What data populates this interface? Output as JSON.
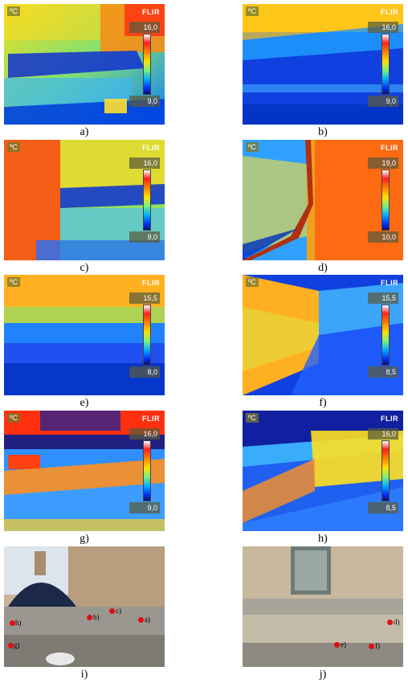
{
  "unit": "ºC",
  "brand": "FLIR",
  "panels": [
    {
      "caption": "a)",
      "max": "16,0",
      "min": "9,0"
    },
    {
      "caption": "b)",
      "max": "16,0",
      "min": "9,0"
    },
    {
      "caption": "c)",
      "max": "16,0",
      "min": "9,0"
    },
    {
      "caption": "d)",
      "max": "19,0",
      "min": "10,0"
    },
    {
      "caption": "e)",
      "max": "15,5",
      "min": "8,0"
    },
    {
      "caption": "f)",
      "max": "15,5",
      "min": "8,5"
    },
    {
      "caption": "g)",
      "max": "16,0",
      "min": "9,0"
    },
    {
      "caption": "h)",
      "max": "16,0",
      "min": "8,5"
    }
  ],
  "photos": [
    {
      "caption": "i)",
      "markers": [
        "a)",
        "b)",
        "c)",
        "g)",
        "h)"
      ]
    },
    {
      "caption": "j)",
      "markers": [
        "d)",
        "e)",
        "f)"
      ]
    }
  ]
}
